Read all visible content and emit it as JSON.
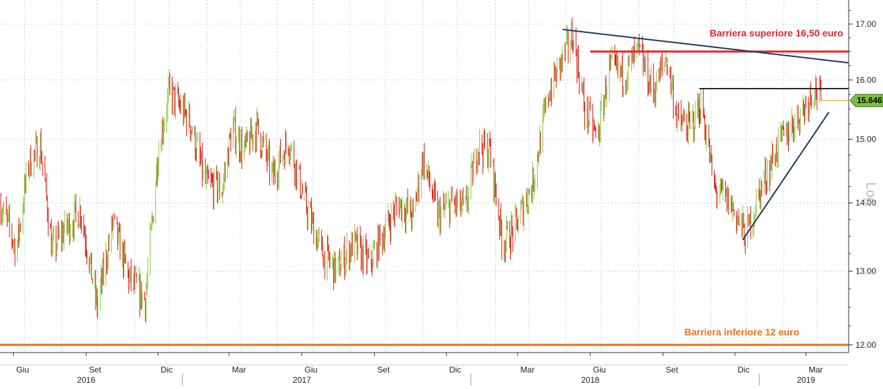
{
  "chart_data": {
    "type": "candlestick",
    "scale": "log",
    "grid": true,
    "ylim": [
      11.9,
      17.45
    ],
    "y_ticks": [
      {
        "value": 12.0,
        "label": "12.00"
      },
      {
        "value": 13.0,
        "label": "13.00"
      },
      {
        "value": 14.0,
        "label": "14.00"
      },
      {
        "value": 15.0,
        "label": "15.00"
      },
      {
        "value": 16.0,
        "label": "16.00"
      },
      {
        "value": 17.0,
        "label": "17.00"
      }
    ],
    "scale_label": "Log",
    "x_range": [
      "2016-05-15",
      "2019-04-24"
    ],
    "months": [
      {
        "date": "2016-06-01",
        "label": "Giu"
      },
      {
        "date": "2016-09-01",
        "label": "Set"
      },
      {
        "date": "2016-12-01",
        "label": "Dic"
      },
      {
        "date": "2017-03-01",
        "label": "Mar"
      },
      {
        "date": "2017-06-01",
        "label": "Giu"
      },
      {
        "date": "2017-09-01",
        "label": "Set"
      },
      {
        "date": "2017-12-01",
        "label": "Dic"
      },
      {
        "date": "2018-03-01",
        "label": "Mar"
      },
      {
        "date": "2018-06-01",
        "label": "Giu"
      },
      {
        "date": "2018-09-01",
        "label": "Set"
      },
      {
        "date": "2018-12-01",
        "label": "Dic"
      },
      {
        "date": "2019-03-01",
        "label": "Mar"
      }
    ],
    "years": [
      {
        "date": "2016-09-01",
        "label": "2016"
      },
      {
        "date": "2017-06-01",
        "label": "2017"
      },
      {
        "date": "2018-06-01",
        "label": "2018"
      },
      {
        "date": "2019-03-01",
        "label": "2019"
      }
    ],
    "year_dividers": [
      "2017-01-01",
      "2018-01-01",
      "2019-01-01"
    ],
    "price_path": [
      [
        "2016-05-15",
        14.0
      ],
      [
        "2016-06-05",
        13.3
      ],
      [
        "2016-06-20",
        14.6
      ],
      [
        "2016-07-05",
        14.9
      ],
      [
        "2016-07-20",
        13.3
      ],
      [
        "2016-08-05",
        13.6
      ],
      [
        "2016-08-25",
        13.9
      ],
      [
        "2016-09-15",
        12.5
      ],
      [
        "2016-10-05",
        13.7
      ],
      [
        "2016-10-25",
        12.9
      ],
      [
        "2016-11-15",
        12.6
      ],
      [
        "2016-11-25",
        13.9
      ],
      [
        "2016-12-01",
        14.8
      ],
      [
        "2016-12-15",
        15.8
      ],
      [
        "2017-01-10",
        15.3
      ],
      [
        "2017-01-30",
        14.3
      ],
      [
        "2017-02-20",
        14.2
      ],
      [
        "2017-03-05",
        15.2
      ],
      [
        "2017-03-20",
        14.8
      ],
      [
        "2017-04-05",
        15.2
      ],
      [
        "2017-04-25",
        14.4
      ],
      [
        "2017-05-15",
        15.0
      ],
      [
        "2017-06-05",
        14.0
      ],
      [
        "2017-06-25",
        13.3
      ],
      [
        "2017-07-15",
        13.0
      ],
      [
        "2017-08-05",
        13.4
      ],
      [
        "2017-08-25",
        13.1
      ],
      [
        "2017-09-10",
        13.5
      ],
      [
        "2017-10-01",
        14.0
      ],
      [
        "2017-10-20",
        13.8
      ],
      [
        "2017-11-01",
        14.7
      ],
      [
        "2017-11-20",
        13.8
      ],
      [
        "2017-12-10",
        14.0
      ],
      [
        "2017-12-25",
        13.9
      ],
      [
        "2018-01-10",
        14.9
      ],
      [
        "2018-01-25",
        14.8
      ],
      [
        "2018-02-10",
        13.4
      ],
      [
        "2018-02-25",
        13.6
      ],
      [
        "2018-03-20",
        14.3
      ],
      [
        "2018-04-10",
        15.8
      ],
      [
        "2018-05-01",
        16.5
      ],
      [
        "2018-05-10",
        16.8
      ],
      [
        "2018-05-25",
        15.5
      ],
      [
        "2018-06-10",
        15.0
      ],
      [
        "2018-06-25",
        16.2
      ],
      [
        "2018-07-15",
        16.1
      ],
      [
        "2018-08-01",
        16.5
      ],
      [
        "2018-08-20",
        15.8
      ],
      [
        "2018-09-05",
        16.4
      ],
      [
        "2018-09-20",
        15.3
      ],
      [
        "2018-10-05",
        15.2
      ],
      [
        "2018-10-20",
        15.6
      ],
      [
        "2018-11-05",
        14.2
      ],
      [
        "2018-11-25",
        14.0
      ],
      [
        "2018-12-15",
        13.5
      ],
      [
        "2019-01-05",
        14.3
      ],
      [
        "2019-01-25",
        14.9
      ],
      [
        "2019-02-10",
        15.2
      ],
      [
        "2019-02-25",
        15.5
      ],
      [
        "2019-03-12",
        15.9
      ],
      [
        "2019-03-20",
        15.646
      ]
    ],
    "last_price": {
      "value": 15.646,
      "label": "15.646"
    },
    "horizontal_lines": [
      {
        "name": "upper-barrier",
        "value": 16.5,
        "from": "2018-06-01",
        "to": "2019-04-24",
        "color": "#e8232e",
        "label": "Barriera superiore 16,50 euro",
        "label_color": "#e8232e"
      },
      {
        "name": "lower-barrier",
        "value": 12.0,
        "from": "2016-05-15",
        "to": "2019-04-24",
        "color": "#f07018",
        "label": "Barriera inferiore 12 euro",
        "label_color": "#f07018"
      },
      {
        "name": "resistance",
        "value": 15.85,
        "from": "2018-10-17",
        "to": "2019-04-24",
        "color": "#111111"
      }
    ],
    "trend_lines": [
      {
        "name": "descending-trendline",
        "from": [
          "2018-04-27",
          16.9
        ],
        "to": [
          "2019-04-24",
          16.3
        ],
        "color": "#1f3a5c"
      },
      {
        "name": "ascending-trendline",
        "from": [
          "2018-12-11",
          13.45
        ],
        "to": [
          "2019-03-30",
          15.45
        ],
        "color": "#1f3a5c"
      }
    ],
    "colors": {
      "up": "#8cc63f",
      "down": "#e01010",
      "grid": "#b3dbe8",
      "axis": "#333333",
      "last_price_bg": "#7ac143"
    }
  }
}
